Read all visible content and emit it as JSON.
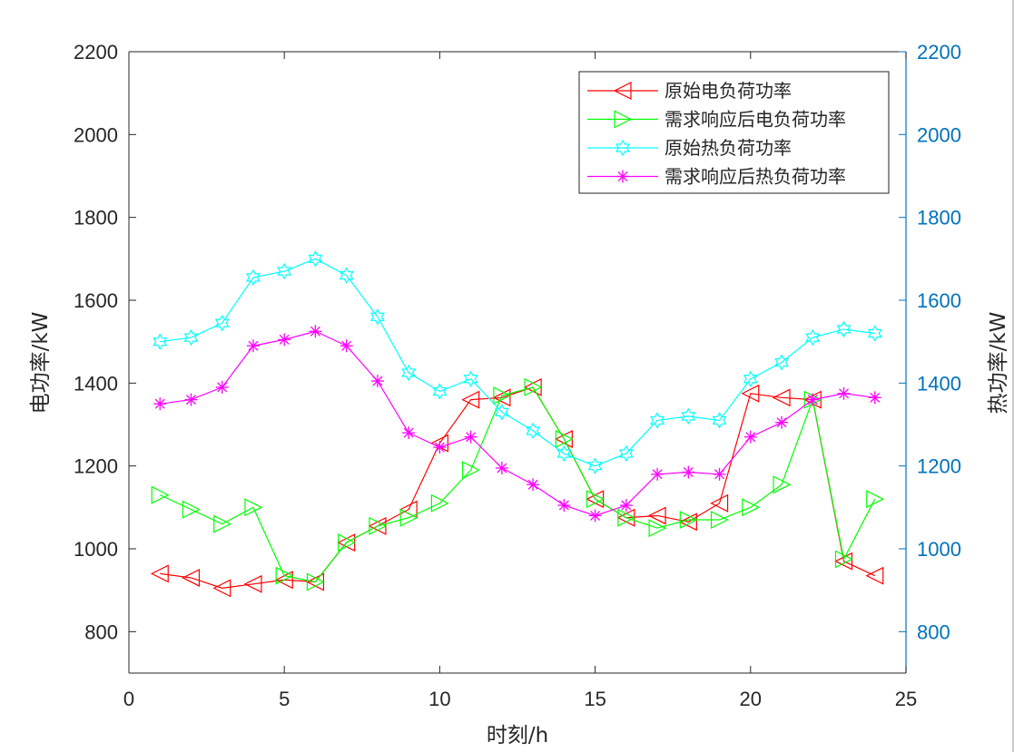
{
  "chart_data": {
    "type": "line",
    "title": "",
    "xlabel": "时刻/h",
    "ylabel": "电功率/kW",
    "ylabel_right": "热功率/kW",
    "xlim": [
      0,
      25
    ],
    "ylim": [
      700,
      2200
    ],
    "ylim_right": [
      700,
      2200
    ],
    "xticks": [
      0,
      5,
      10,
      15,
      20,
      25
    ],
    "yticks": [
      800,
      1000,
      1200,
      1400,
      1600,
      1800,
      2000,
      2200
    ],
    "yticks_right": [
      800,
      1000,
      1200,
      1400,
      1600,
      1800,
      2000,
      2200
    ],
    "grid": false,
    "legend_position": "northeast",
    "x": [
      1,
      2,
      3,
      4,
      5,
      6,
      7,
      8,
      9,
      10,
      11,
      12,
      13,
      14,
      15,
      16,
      17,
      18,
      19,
      20,
      21,
      22,
      23,
      24
    ],
    "series": [
      {
        "name": "原始电负荷功率",
        "color": "#ff0000",
        "marker": "triangle-left",
        "axis": "left",
        "values": [
          940,
          930,
          905,
          915,
          925,
          920,
          1015,
          1055,
          1095,
          1255,
          1360,
          1365,
          1390,
          1265,
          1120,
          1075,
          1080,
          1065,
          1110,
          1375,
          1365,
          1360,
          970,
          935
        ]
      },
      {
        "name": "需求响应后电负荷功率",
        "color": "#00ff00",
        "marker": "triangle-right",
        "axis": "left",
        "values": [
          1130,
          1095,
          1060,
          1100,
          935,
          920,
          1015,
          1055,
          1075,
          1110,
          1190,
          1370,
          1390,
          1265,
          1120,
          1075,
          1050,
          1070,
          1070,
          1100,
          1155,
          1360,
          975,
          1120
        ]
      },
      {
        "name": "原始热负荷功率",
        "color": "#00ffff",
        "marker": "hexagram",
        "axis": "right",
        "values": [
          1500,
          1510,
          1545,
          1655,
          1670,
          1700,
          1660,
          1560,
          1425,
          1380,
          1410,
          1330,
          1285,
          1230,
          1200,
          1230,
          1310,
          1320,
          1310,
          1410,
          1450,
          1510,
          1530,
          1520
        ]
      },
      {
        "name": "需求响应后热负荷功率",
        "color": "#ff00ff",
        "marker": "asterisk",
        "axis": "right",
        "values": [
          1350,
          1360,
          1390,
          1490,
          1505,
          1525,
          1490,
          1405,
          1280,
          1245,
          1270,
          1195,
          1155,
          1105,
          1080,
          1105,
          1180,
          1185,
          1180,
          1270,
          1305,
          1360,
          1375,
          1365
        ]
      }
    ]
  },
  "style": {
    "left_axis_color": "#262626",
    "right_axis_color": "#0072bd",
    "background": "#ffffff"
  }
}
